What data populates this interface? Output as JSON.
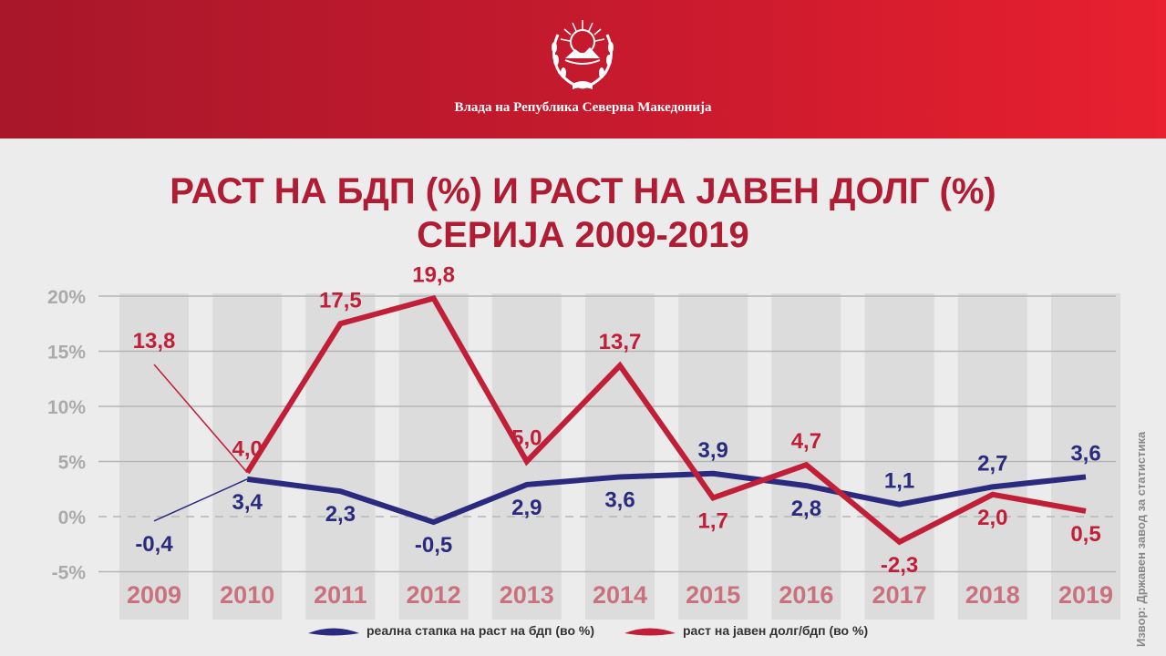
{
  "header": {
    "government": "Влада на Република Северна Македонија"
  },
  "colors": {
    "gdp": "#2a2a7e",
    "debt": "#c11e38",
    "header": "#c81a2e",
    "year": "#c9727e"
  },
  "title_line1": "РАСТ НА БДП (%) И РАСТ НА ЈАВЕН ДОЛГ (%)",
  "title_line2": "СЕРИЈА 2009-2019",
  "source": "Извор: Државен завод за статистика",
  "chart_data": {
    "type": "line",
    "title": "РАСТ НА БДП (%) И РАСТ НА ЈАВЕН ДОЛГ (%) СЕРИЈА 2009-2019",
    "categories": [
      "2009",
      "2010",
      "2011",
      "2012",
      "2013",
      "2014",
      "2015",
      "2016",
      "2017",
      "2018",
      "2019"
    ],
    "yticks": [
      "20%",
      "15%",
      "10%",
      "5%",
      "0%",
      "-5%"
    ],
    "ylim": [
      -5,
      20
    ],
    "series": [
      {
        "name": "реална стапка на раст на бдп (во %)",
        "key": "gdp",
        "values": [
          -0.4,
          3.4,
          2.3,
          -0.5,
          2.9,
          3.6,
          3.9,
          2.8,
          1.1,
          2.7,
          3.6
        ],
        "labels": [
          "-0,4",
          "3,4",
          "2,3",
          "-0,5",
          "2,9",
          "3,6",
          "3,9",
          "2,8",
          "1,1",
          "2,7",
          "3,6"
        ]
      },
      {
        "name": "раст на јавен долг/бдп (во %)",
        "key": "debt",
        "values": [
          13.8,
          4.0,
          17.5,
          19.8,
          5.0,
          13.7,
          1.7,
          4.7,
          -2.3,
          2.0,
          0.5
        ],
        "labels": [
          "13,8",
          "4,0",
          "17,5",
          "19,8",
          "5,0",
          "13,7",
          "1,7",
          "4,7",
          "-2,3",
          "2,0",
          "0,5"
        ]
      }
    ]
  }
}
